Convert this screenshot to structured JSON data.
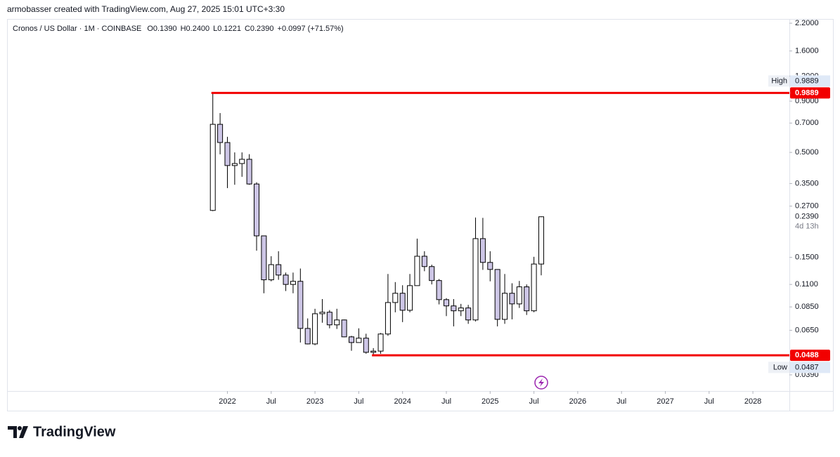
{
  "attribution": "armobasser created with TradingView.com, Aug 27, 2025 15:01 UTC+3:30",
  "brand": "TradingView",
  "chart_data": {
    "type": "candlestick",
    "title": "Cronos / US Dollar · 1M · COINBASE",
    "ohlc_legend": [
      "O0.1390",
      "H0.2400",
      "L0.1221",
      "C0.2390",
      "+0.0997 (+71.57%)"
    ],
    "x": [
      "2021-11",
      "2021-12",
      "2022-01",
      "2022-02",
      "2022-03",
      "2022-04",
      "2022-05",
      "2022-06",
      "2022-07",
      "2022-08",
      "2022-09",
      "2022-10",
      "2022-11",
      "2022-12",
      "2023-01",
      "2023-02",
      "2023-03",
      "2023-04",
      "2023-05",
      "2023-06",
      "2023-07",
      "2023-08",
      "2023-09",
      "2023-10",
      "2023-11",
      "2023-12",
      "2024-01",
      "2024-02",
      "2024-03",
      "2024-04",
      "2024-05",
      "2024-06",
      "2024-07",
      "2024-08",
      "2024-09",
      "2024-10",
      "2024-11",
      "2024-12",
      "2025-01",
      "2025-02",
      "2025-03",
      "2025-04",
      "2025-05",
      "2025-06",
      "2025-07",
      "2025-08"
    ],
    "open": [
      0.257,
      0.69,
      0.56,
      0.43,
      0.44,
      0.462,
      0.348,
      0.192,
      0.116,
      0.138,
      0.1225,
      0.11,
      0.114,
      0.0664,
      0.0556,
      0.0786,
      0.08,
      0.0692,
      0.0732,
      0.0603,
      0.0565,
      0.0594,
      0.0505,
      0.0512,
      0.0623,
      0.0894,
      0.0994,
      0.0818,
      0.1085,
      0.152,
      0.135,
      0.115,
      0.0924,
      0.086,
      0.0813,
      0.084,
      0.0732,
      0.186,
      0.1416,
      0.1306,
      0.0737,
      0.0994,
      0.088,
      0.107,
      0.0813,
      0.139
    ],
    "high": [
      0.9889,
      0.785,
      0.598,
      0.5,
      0.5,
      0.49,
      0.355,
      0.192,
      0.152,
      0.161,
      0.126,
      0.126,
      0.132,
      0.0745,
      0.0832,
      0.093,
      0.082,
      0.0832,
      0.0735,
      0.061,
      0.0665,
      0.0625,
      0.053,
      0.063,
      0.124,
      0.113,
      0.109,
      0.124,
      0.186,
      0.161,
      0.138,
      0.117,
      0.094,
      0.093,
      0.088,
      0.087,
      0.237,
      0.236,
      0.161,
      0.131,
      0.124,
      0.1115,
      0.1145,
      0.11,
      0.151,
      0.24
    ],
    "low": [
      0.255,
      0.489,
      0.332,
      0.345,
      0.378,
      0.345,
      0.162,
      0.0994,
      0.114,
      0.116,
      0.102,
      0.0994,
      0.0565,
      0.0553,
      0.0548,
      0.0709,
      0.0665,
      0.066,
      0.06,
      0.0514,
      0.0565,
      0.0497,
      0.0487,
      0.0497,
      0.061,
      0.0799,
      0.0714,
      0.0799,
      0.1085,
      0.128,
      0.11,
      0.0875,
      0.0765,
      0.068,
      0.0765,
      0.07,
      0.072,
      0.13,
      0.114,
      0.068,
      0.07,
      0.0737,
      0.084,
      0.0775,
      0.08,
      0.1221
    ],
    "close": [
      0.69,
      0.56,
      0.43,
      0.44,
      0.462,
      0.348,
      0.192,
      0.116,
      0.138,
      0.1225,
      0.11,
      0.114,
      0.0664,
      0.0556,
      0.0786,
      0.08,
      0.0692,
      0.0732,
      0.0603,
      0.0565,
      0.0594,
      0.0505,
      0.0512,
      0.0623,
      0.0894,
      0.0994,
      0.0818,
      0.1085,
      0.152,
      0.135,
      0.115,
      0.0924,
      0.086,
      0.0813,
      0.084,
      0.0732,
      0.186,
      0.1416,
      0.1306,
      0.0737,
      0.0994,
      0.088,
      0.107,
      0.0813,
      0.139,
      0.239
    ],
    "up_color": "#ffffff",
    "down_color": "#cdc6e6",
    "wick_color": "#000000",
    "log_scale": true,
    "grid": false,
    "ylim": [
      0.0324,
      2.31
    ],
    "yticks": [
      {
        "value": 2.2,
        "label": "2.2000"
      },
      {
        "value": 1.6,
        "label": "1.6000"
      },
      {
        "value": 1.2,
        "label": "1.2000"
      },
      {
        "value": 0.9,
        "label": "0.9000"
      },
      {
        "value": 0.7,
        "label": "0.7000"
      },
      {
        "value": 0.5,
        "label": "0.5000"
      },
      {
        "value": 0.35,
        "label": "0.3500"
      },
      {
        "value": 0.27,
        "label": "0.2700"
      },
      {
        "value": 0.15,
        "label": "0.1500"
      },
      {
        "value": 0.11,
        "label": "0.1100"
      },
      {
        "value": 0.085,
        "label": "0.0850"
      },
      {
        "value": 0.065,
        "label": "0.0650"
      },
      {
        "value": 0.039,
        "label": "0.0390"
      }
    ],
    "xlim": [
      "2019-07",
      "2028-06"
    ],
    "xticks": [
      {
        "value": "2022-01",
        "label": "2022"
      },
      {
        "value": "2022-07",
        "label": "Jul"
      },
      {
        "value": "2023-01",
        "label": "2023"
      },
      {
        "value": "2023-07",
        "label": "Jul"
      },
      {
        "value": "2024-01",
        "label": "2024"
      },
      {
        "value": "2024-07",
        "label": "Jul"
      },
      {
        "value": "2025-01",
        "label": "2025"
      },
      {
        "value": "2025-07",
        "label": "Jul"
      },
      {
        "value": "2026-01",
        "label": "2026"
      },
      {
        "value": "2026-07",
        "label": "Jul"
      },
      {
        "value": "2027-01",
        "label": "2027"
      },
      {
        "value": "2027-07",
        "label": "Jul"
      },
      {
        "value": "2028-01",
        "label": "2028"
      }
    ],
    "hlines": [
      {
        "value": 0.9889,
        "start": "2021-11",
        "color": "#f20000"
      },
      {
        "value": 0.0488,
        "start": "2023-09",
        "color": "#f20000"
      }
    ],
    "high_label": {
      "label": "High",
      "value": 0.9889
    },
    "low_label": {
      "label": "Low",
      "value": 0.0487
    },
    "last_price": {
      "value": 0.239,
      "label": "0.2390"
    },
    "countdown": "4d 13h"
  }
}
